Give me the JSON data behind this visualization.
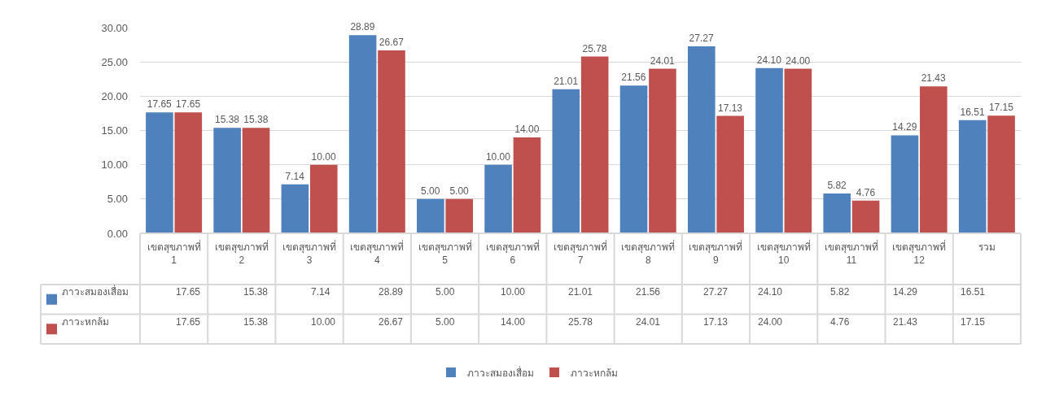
{
  "chart_data": {
    "type": "bar",
    "categories": [
      "เขตสุขภาพที่ 1",
      "เขตสุขภาพที่ 2",
      "เขตสุขภาพที่ 3",
      "เขตสุขภาพที่ 4",
      "เขตสุขภาพที่ 5",
      "เขตสุขภาพที่ 6",
      "เขตสุขภาพที่ 7",
      "เขตสุขภาพที่ 8",
      "เขตสุขภาพที่ 9",
      "เขตสุขภาพที่ 10",
      "เขตสุขภาพที่ 11",
      "เขตสุขภาพที่ 12",
      "รวม"
    ],
    "series": [
      {
        "name": "ภาวะสมองเสื่อม",
        "color": "#4f81bd",
        "values": [
          17.65,
          15.38,
          7.14,
          28.89,
          5.0,
          10.0,
          21.01,
          21.56,
          27.27,
          24.1,
          5.82,
          14.29,
          16.51
        ],
        "value_labels": [
          "17.65",
          "15.38",
          "7.14",
          "28.89",
          "5.00",
          "10.00",
          "21.01",
          "21.56",
          "27.27",
          "24.10",
          "5.82",
          "14.29",
          "16.51"
        ]
      },
      {
        "name": "ภาวะหกล้ม",
        "color": "#c0504d",
        "values": [
          17.65,
          15.38,
          10.0,
          26.67,
          5.0,
          14.0,
          25.78,
          24.01,
          17.13,
          24.0,
          4.76,
          21.43,
          17.15
        ],
        "value_labels": [
          "17.65",
          "15.38",
          "10.00",
          "26.67",
          "5.00",
          "14.00",
          "25.78",
          "24.01",
          "17.13",
          "24.00",
          "4.76",
          "21.43",
          "17.15"
        ]
      }
    ],
    "ylim": [
      0,
      30
    ],
    "yticks": [
      {
        "value": 0,
        "label": "0.00"
      },
      {
        "value": 5,
        "label": "5.00"
      },
      {
        "value": 10,
        "label": "10.00"
      },
      {
        "value": 15,
        "label": "15.00"
      },
      {
        "value": 20,
        "label": "20.00"
      },
      {
        "value": 25,
        "label": "25.00"
      },
      {
        "value": 30,
        "label": "30.00"
      }
    ],
    "grid": "y",
    "legend": "bottom"
  }
}
